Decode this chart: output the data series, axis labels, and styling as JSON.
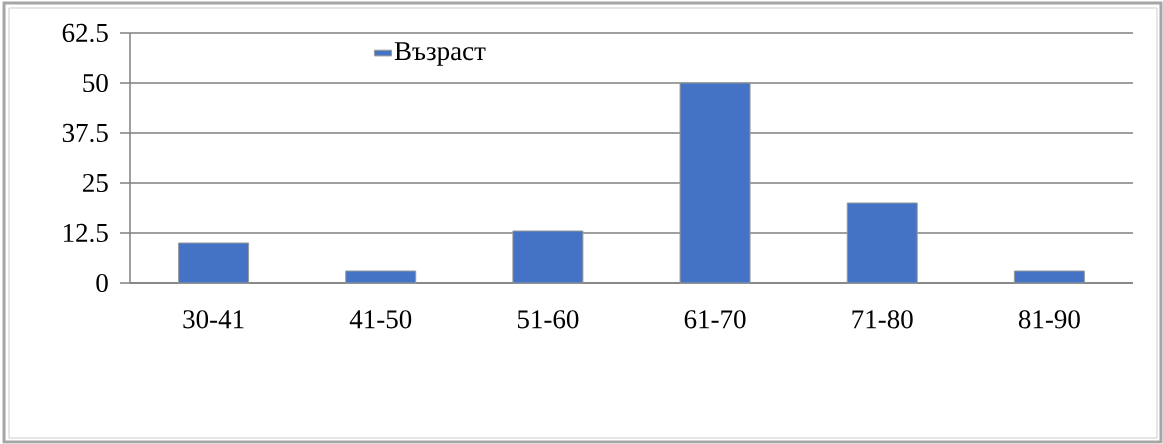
{
  "chart_data": {
    "type": "bar",
    "categories": [
      "30-41",
      "41-50",
      "51-60",
      "61-70",
      "71-80",
      "81-90"
    ],
    "series": [
      {
        "name": "Възраст",
        "color": "#4472c4",
        "values": [
          10,
          3,
          13,
          50,
          20,
          3
        ]
      }
    ],
    "ylim": [
      0,
      62.5
    ],
    "yticks": [
      0,
      12.5,
      25,
      37.5,
      50,
      62.5
    ],
    "grid": "y",
    "legend": "top"
  }
}
